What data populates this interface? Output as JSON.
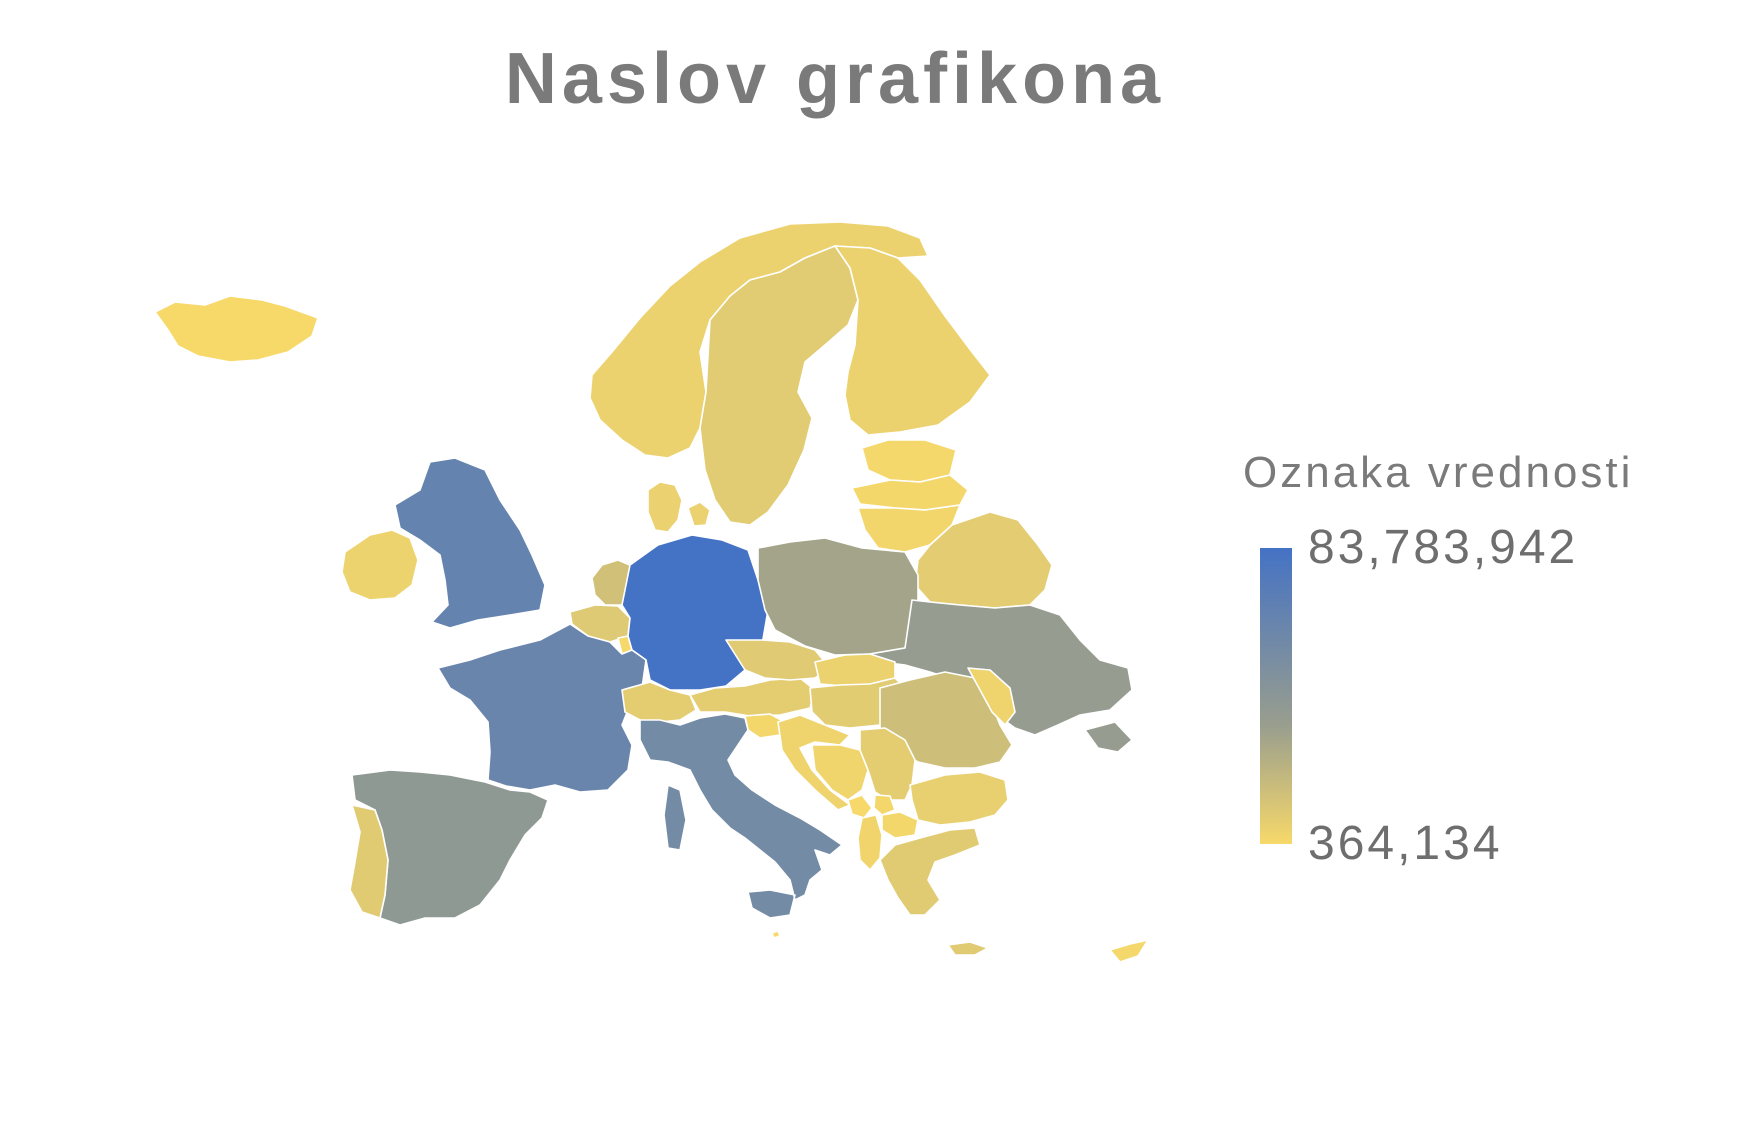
{
  "chart_data": {
    "type": "choropleth-map",
    "title": "Naslov grafikona",
    "legend": {
      "title": "Oznaka vrednosti",
      "max_label": "83,783,942",
      "min_label": "364,134",
      "max": 83783942,
      "min": 364134,
      "color_high": "#4472c4",
      "color_mid": "#999e8e",
      "color_low": "#f7d96a",
      "placement": "right"
    },
    "regions": [
      {
        "id": "iceland",
        "value": 364134
      },
      {
        "id": "norway",
        "value": 5400000
      },
      {
        "id": "sweden",
        "value": 10300000
      },
      {
        "id": "finland",
        "value": 5500000
      },
      {
        "id": "estonia",
        "value": 1300000
      },
      {
        "id": "latvia",
        "value": 1900000
      },
      {
        "id": "lithuania",
        "value": 2800000
      },
      {
        "id": "belarus",
        "value": 9400000
      },
      {
        "id": "denmark",
        "value": 5800000
      },
      {
        "id": "ireland",
        "value": 4900000
      },
      {
        "id": "united-kingdom",
        "value": 67900000
      },
      {
        "id": "netherlands",
        "value": 17100000
      },
      {
        "id": "belgium",
        "value": 11600000
      },
      {
        "id": "luxembourg",
        "value": 630000
      },
      {
        "id": "germany",
        "value": 83783942
      },
      {
        "id": "poland",
        "value": 37800000
      },
      {
        "id": "ukraine",
        "value": 43700000
      },
      {
        "id": "france",
        "value": 65300000
      },
      {
        "id": "switzerland",
        "value": 8700000
      },
      {
        "id": "austria",
        "value": 9000000
      },
      {
        "id": "czechia",
        "value": 10700000
      },
      {
        "id": "slovakia",
        "value": 5460000
      },
      {
        "id": "hungary",
        "value": 9660000
      },
      {
        "id": "romania",
        "value": 19200000
      },
      {
        "id": "moldova",
        "value": 4000000
      },
      {
        "id": "slovenia",
        "value": 2080000
      },
      {
        "id": "croatia",
        "value": 4100000
      },
      {
        "id": "bosnia-and-herzegovina",
        "value": 3280000
      },
      {
        "id": "serbia",
        "value": 8740000
      },
      {
        "id": "montenegro",
        "value": 628000
      },
      {
        "id": "kosovo",
        "value": 1800000
      },
      {
        "id": "north-macedonia",
        "value": 2080000
      },
      {
        "id": "albania",
        "value": 2870000
      },
      {
        "id": "bulgaria",
        "value": 6950000
      },
      {
        "id": "greece",
        "value": 10400000
      },
      {
        "id": "italy",
        "value": 60460000
      },
      {
        "id": "spain",
        "value": 46750000
      },
      {
        "id": "portugal",
        "value": 10200000
      },
      {
        "id": "cyprus",
        "value": 1200000
      },
      {
        "id": "malta",
        "value": 441000
      }
    ]
  }
}
